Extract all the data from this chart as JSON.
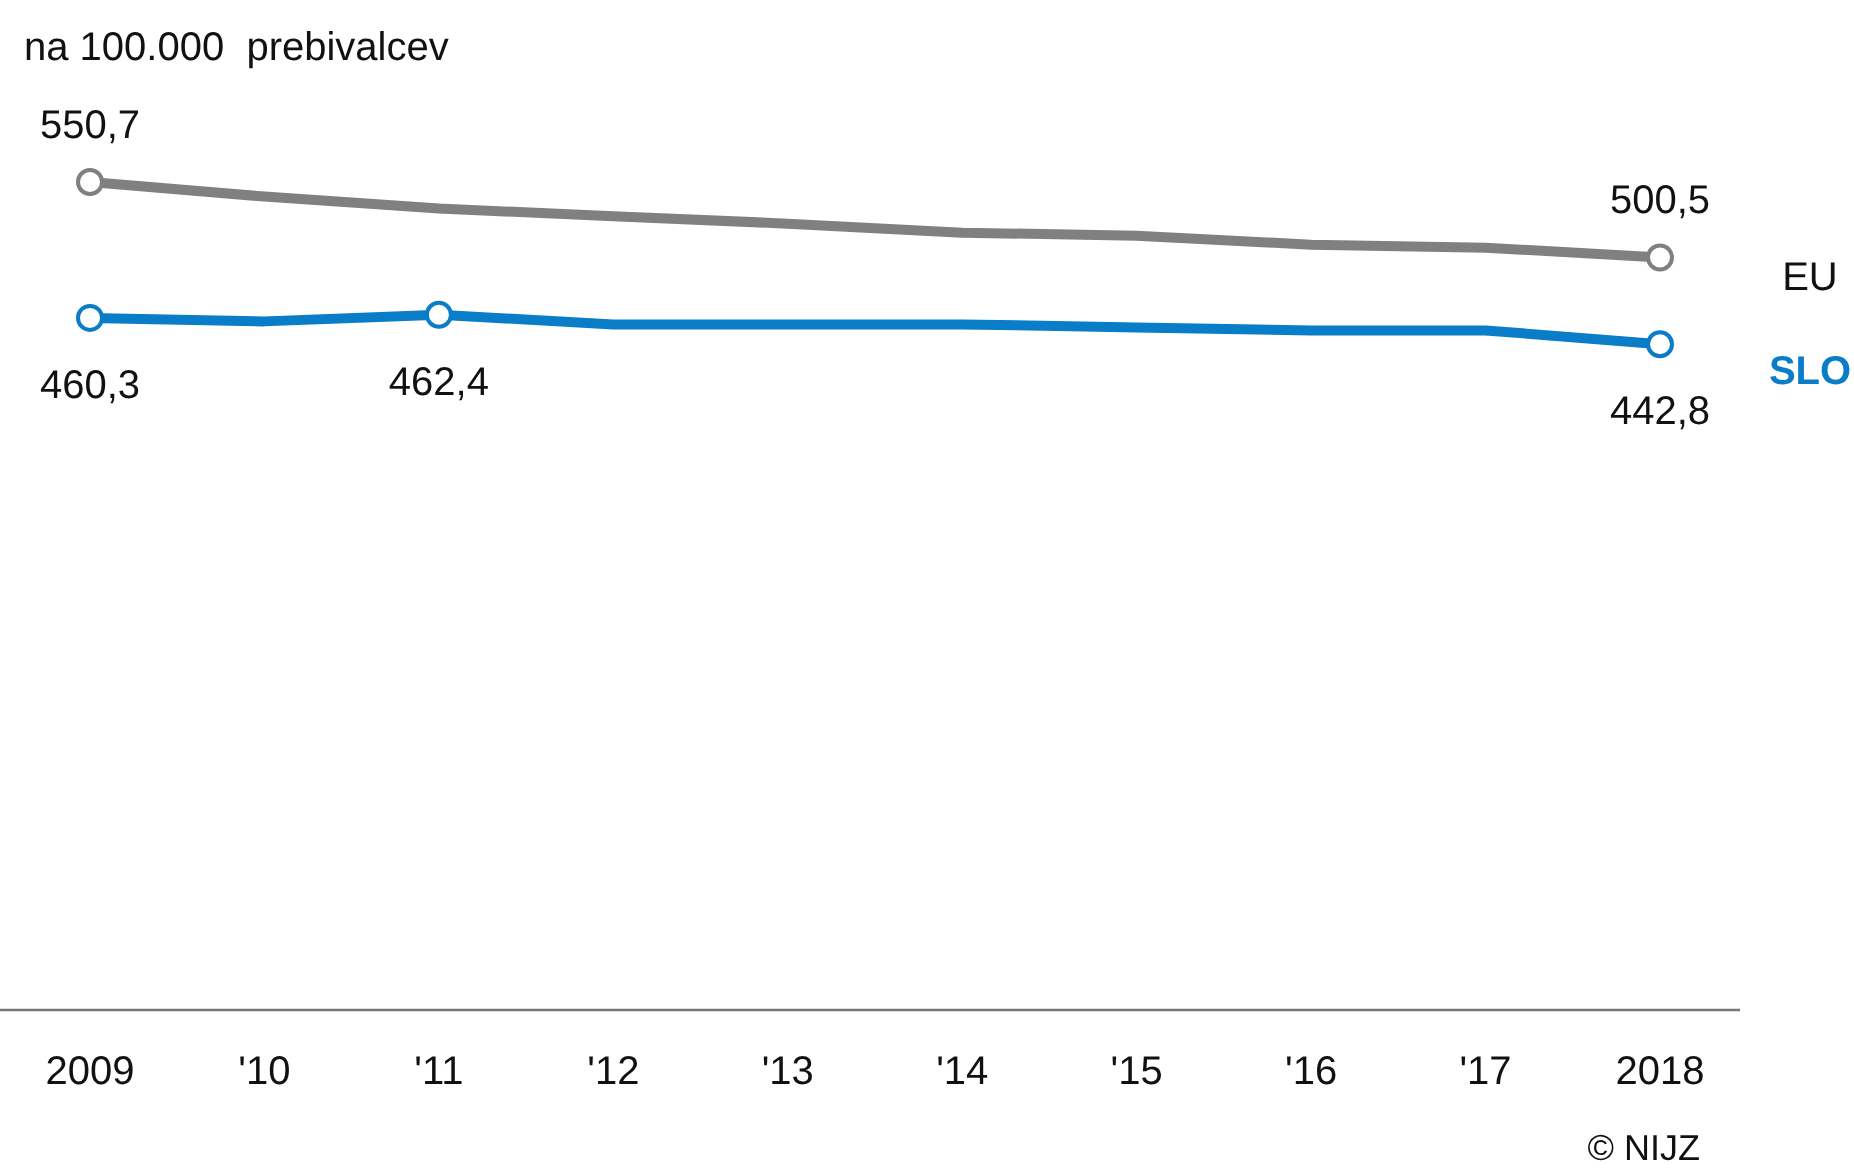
{
  "chart_data": {
    "type": "line",
    "ylabel": "na 100.000  prebivalcev",
    "categories": [
      "2009",
      "'10",
      "'11",
      "'12",
      "'13",
      "'14",
      "'15",
      "'16",
      "'17",
      "2018"
    ],
    "tick_labels": "x",
    "line_style": "solid",
    "legend": false,
    "series": [
      {
        "name": "EU",
        "color": "#808080",
        "values": [
          550.7,
          541,
          533,
          528,
          523,
          517,
          515,
          509,
          507,
          500.5
        ],
        "value_labels": [
          "550,7",
          null,
          null,
          null,
          null,
          null,
          null,
          null,
          null,
          "500,5"
        ]
      },
      {
        "name": "SLO",
        "color": "#0a7dc8",
        "values": [
          460.3,
          458,
          462.4,
          456,
          456,
          456,
          454,
          452,
          452,
          442.8
        ],
        "value_labels": [
          "460,3",
          null,
          "462,4",
          null,
          null,
          null,
          null,
          null,
          null,
          "442,8"
        ]
      }
    ],
    "annotations": [
      "© NIJZ"
    ]
  }
}
